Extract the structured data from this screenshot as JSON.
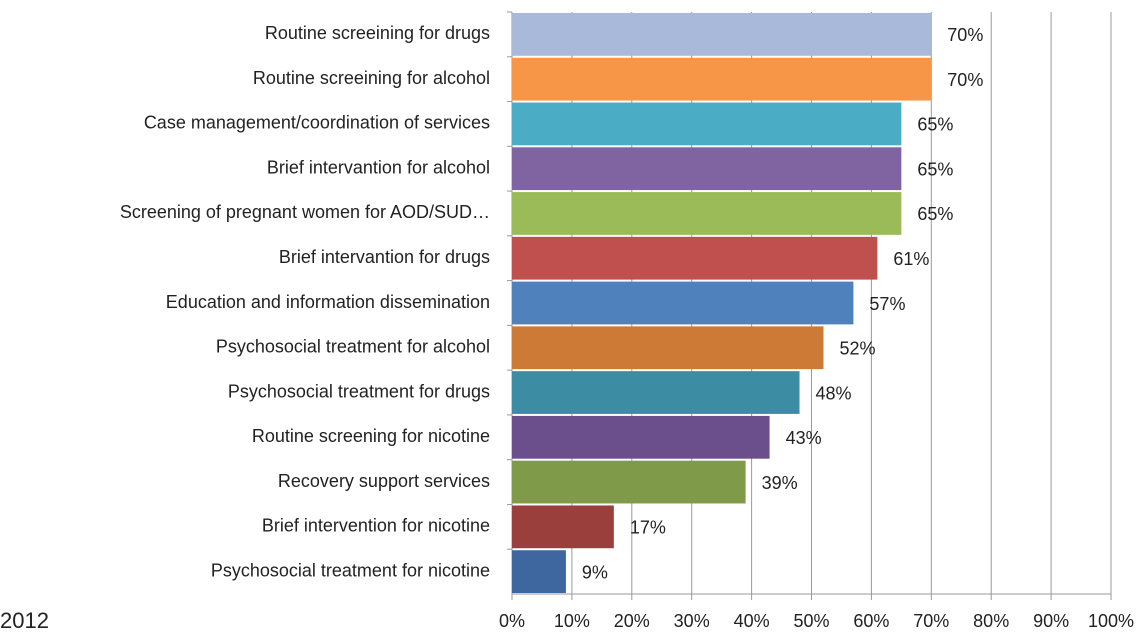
{
  "chart_data": {
    "type": "bar",
    "orientation": "horizontal",
    "annotation": "2012",
    "categories": [
      "Routine screeining for drugs",
      "Routine screeining for alcohol",
      "Case management/coordination of services",
      "Brief intervantion for alcohol",
      "Screening of pregnant women for AOD/SUD…",
      "Brief intervantion for drugs",
      "Education and information dissemination",
      "Psychosocial treatment for alcohol",
      "Psychosocial treatment for drugs",
      "Routine screening for nicotine",
      "Recovery support services",
      "Brief intervention for nicotine",
      "Psychosocial treatment for nicotine"
    ],
    "values": [
      70,
      70,
      65,
      65,
      65,
      61,
      57,
      52,
      48,
      43,
      39,
      17,
      9
    ],
    "value_labels": [
      "70%",
      "70%",
      "65%",
      "65%",
      "65%",
      "61%",
      "57%",
      "52%",
      "48%",
      "43%",
      "39%",
      "17%",
      "9%"
    ],
    "colors": [
      "#a9b9da",
      "#f79646",
      "#4bacc6",
      "#8064a2",
      "#9bbb59",
      "#c0504d",
      "#4f81bd",
      "#cc7a36",
      "#3c8da3",
      "#6a4f8c",
      "#7f9a48",
      "#9b3f3c",
      "#3e67a0"
    ],
    "xlim": [
      0,
      100
    ],
    "xticks": [
      {
        "value": 0,
        "label": "0%"
      },
      {
        "value": 10,
        "label": "10%"
      },
      {
        "value": 20,
        "label": "20%"
      },
      {
        "value": 30,
        "label": "30%"
      },
      {
        "value": 40,
        "label": "40%"
      },
      {
        "value": 50,
        "label": "50%"
      },
      {
        "value": 60,
        "label": "60%"
      },
      {
        "value": 70,
        "label": "70%"
      },
      {
        "value": 80,
        "label": "80%"
      },
      {
        "value": 90,
        "label": "90%"
      },
      {
        "value": 100,
        "label": "100%"
      }
    ],
    "grid": true
  }
}
